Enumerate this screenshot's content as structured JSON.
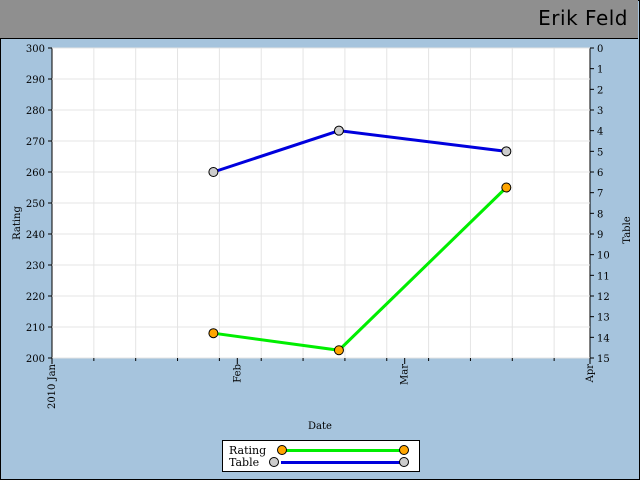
{
  "header": {
    "title": "Erik Feld"
  },
  "colors": {
    "rating_line": "#00ee00",
    "rating_marker": "#ffa500",
    "table_line": "#0000dd",
    "table_marker": "#cccccc"
  },
  "chart_data": {
    "type": "line",
    "xlabel": "Date",
    "ylabel": "Rating",
    "y2label": "Table",
    "x_ticks": [
      "2010 Jan",
      "Feb",
      "Mar",
      "Apr"
    ],
    "x_range": [
      "2010-01-01",
      "2010-04-01"
    ],
    "ylim": [
      200,
      300
    ],
    "y_ticks": [
      200,
      210,
      220,
      230,
      240,
      250,
      260,
      270,
      280,
      290,
      300
    ],
    "y2lim": [
      0,
      15
    ],
    "y2_inverted": true,
    "y2_ticks": [
      0,
      1,
      2,
      3,
      4,
      5,
      6,
      7,
      8,
      9,
      10,
      11,
      12,
      13,
      14,
      15
    ],
    "grid": true,
    "legend_position": "bottom-center",
    "series": [
      {
        "name": "Rating",
        "axis": "left",
        "points": [
          {
            "x": "2010-01-28",
            "y": 208
          },
          {
            "x": "2010-02-18",
            "y": 202.5
          },
          {
            "x": "2010-03-18",
            "y": 255
          }
        ]
      },
      {
        "name": "Table",
        "axis": "right",
        "points": [
          {
            "x": "2010-01-28",
            "y": 6
          },
          {
            "x": "2010-02-18",
            "y": 4
          },
          {
            "x": "2010-03-18",
            "y": 5
          }
        ]
      }
    ]
  }
}
